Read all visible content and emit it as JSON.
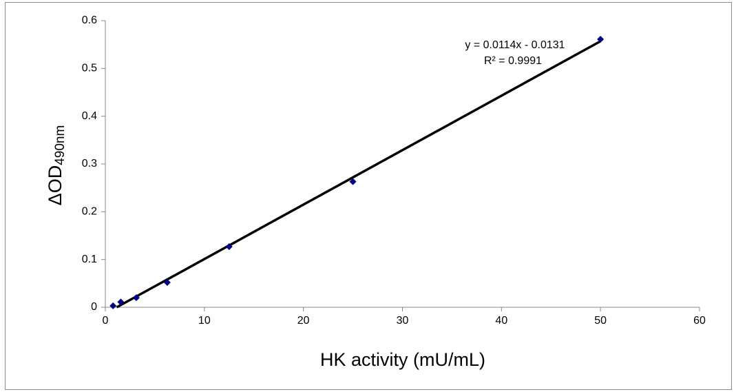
{
  "chart_data": {
    "type": "scatter",
    "x_label": "HK activity (mU/mL)",
    "y_label": "ΔOD",
    "y_label_subscript": "490nm",
    "x": [
      0.78,
      1.56,
      3.125,
      6.25,
      12.5,
      25,
      50
    ],
    "series": [
      {
        "color": "#000080",
        "values": [
          0.003,
          0.011,
          0.02,
          0.052,
          0.127,
          0.263,
          0.561
        ]
      }
    ],
    "trendline": {
      "equation": "y = 0.0114x - 0.0131",
      "r_squared": "R² = 0.9991",
      "slope": 0.0114,
      "intercept": -0.0131,
      "color": "#000000"
    },
    "xlim": [
      0,
      60
    ],
    "xticks": [
      0,
      10,
      20,
      30,
      40,
      50,
      60
    ],
    "ylim": [
      0,
      0.6
    ],
    "yticks": [
      0,
      0.1,
      0.2,
      0.3,
      0.4,
      0.5,
      0.6
    ],
    "grid": false
  }
}
